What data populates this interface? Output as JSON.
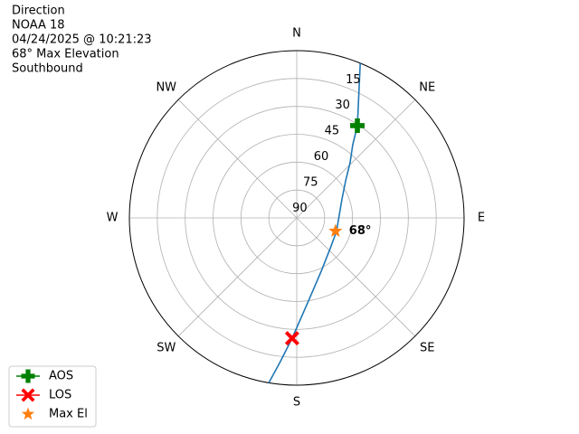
{
  "chart_data": {
    "type": "polar",
    "title_lines": [
      "Direction",
      "NOAA 18",
      "04/24/2025 @ 10:21:23",
      "68° Max Elevation",
      "Southbound"
    ],
    "thetaticks": [
      {
        "value": 0,
        "label": "N"
      },
      {
        "value": 45,
        "label": "NE"
      },
      {
        "value": 90,
        "label": "E"
      },
      {
        "value": 135,
        "label": "SE"
      },
      {
        "value": 180,
        "label": "S"
      },
      {
        "value": 225,
        "label": "SW"
      },
      {
        "value": 270,
        "label": "W"
      },
      {
        "value": 315,
        "label": "NW"
      }
    ],
    "rlim": [
      90,
      0
    ],
    "rticks": [
      15,
      30,
      45,
      60,
      75,
      90
    ],
    "grid": true,
    "series": [
      {
        "color": "#1f77b4",
        "theta": [
          22.3,
          33.3,
          37.4,
          44,
          52.8,
          67.2,
          86.3,
          108.8,
          132.6,
          155.4,
          172.7,
          182.2,
          186.5,
          189.6
        ],
        "r": [
          0,
          30.6,
          40.4,
          48.7,
          57,
          63.6,
          67.1,
          67.4,
          65.6,
          58.4,
          43.9,
          25.2,
          12.2,
          0
        ]
      }
    ],
    "points": [
      {
        "name": "AOS",
        "color": "#008000",
        "marker": "plus",
        "theta": 33.3,
        "r": 30.6
      },
      {
        "name": "LOS",
        "color": "#ff0000",
        "marker": "x",
        "theta": 182.2,
        "r": 25.2
      },
      {
        "name": "Max El",
        "color": "#ff7f0e",
        "marker": "star",
        "theta": 108.8,
        "r": 68
      }
    ],
    "annotation": "68°",
    "legend": "lower left"
  }
}
